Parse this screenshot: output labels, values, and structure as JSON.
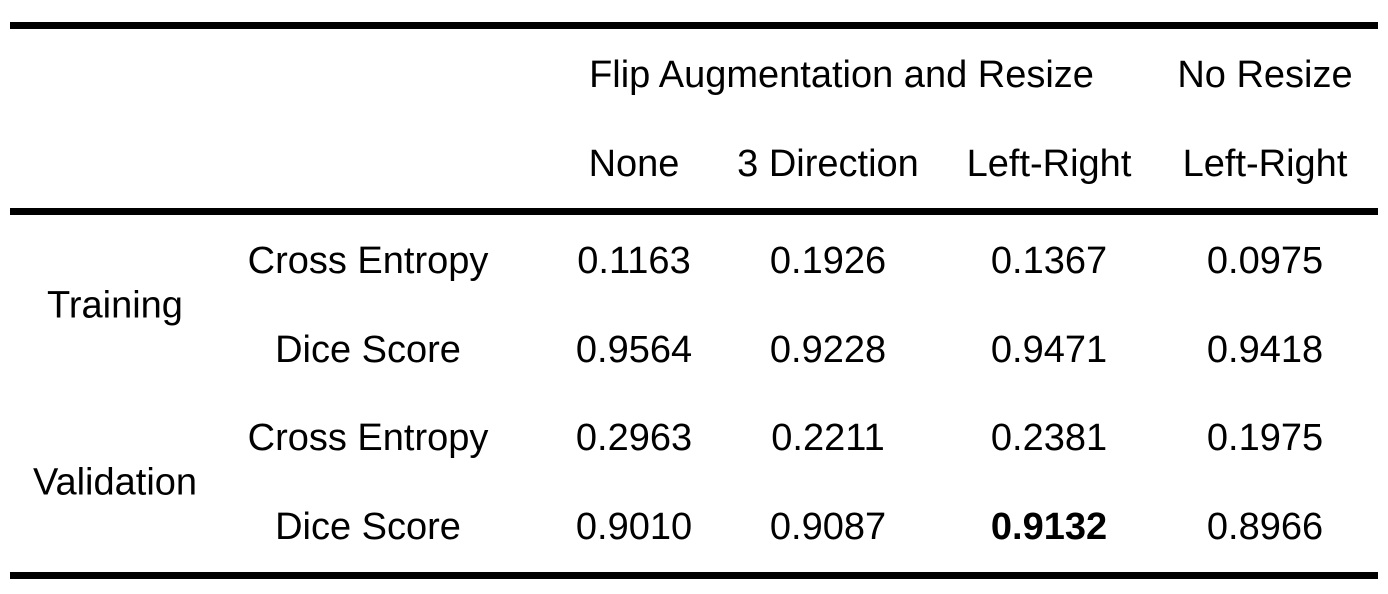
{
  "table": {
    "header": {
      "groups": [
        {
          "label": "Flip Augmentation and Resize",
          "span": 3
        },
        {
          "label": "No Resize",
          "span": 1
        }
      ],
      "columns": [
        "None",
        "3 Direction",
        "Left-Right",
        "Left-Right"
      ]
    },
    "sections": [
      {
        "label": "Training",
        "rows": [
          {
            "metric": "Cross Entropy",
            "values": [
              "0.1163",
              "0.1926",
              "0.1367",
              "0.0975"
            ]
          },
          {
            "metric": "Dice Score",
            "values": [
              "0.9564",
              "0.9228",
              "0.9471",
              "0.9418"
            ]
          }
        ]
      },
      {
        "label": "Validation",
        "rows": [
          {
            "metric": "Cross Entropy",
            "values": [
              "0.2963",
              "0.2211",
              "0.2381",
              "0.1975"
            ]
          },
          {
            "metric": "Dice Score",
            "values": [
              "0.9010",
              "0.9087",
              "0.9132",
              "0.8966"
            ],
            "bold": [
              2
            ]
          }
        ]
      }
    ]
  }
}
